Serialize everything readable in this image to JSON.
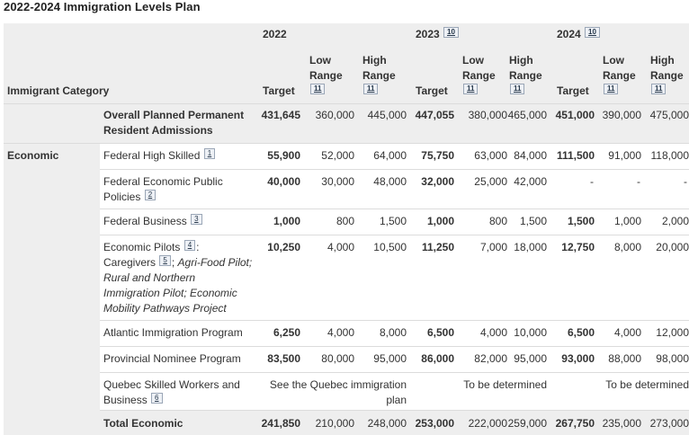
{
  "caption": "2022-2024 Immigration Levels Plan",
  "header": {
    "category": "Immigrant Category",
    "years": [
      {
        "year": "2022",
        "note": ""
      },
      {
        "year": "2023",
        "note": "10"
      },
      {
        "year": "2024",
        "note": "10"
      }
    ],
    "target": "Target",
    "low_line1": "Low",
    "low_line2": "Range",
    "low_note": "11",
    "high_line1": "High",
    "high_line2": "Range",
    "high_note": "11"
  },
  "overall": {
    "label_line1": "Overall Planned Permanent",
    "label_line2": "Resident Admissions",
    "values": [
      "431,645",
      "360,000",
      "445,000",
      "447,055",
      "380,000",
      "465,000",
      "451,000",
      "390,000",
      "475,000"
    ]
  },
  "economic": {
    "category": "Economic",
    "rows": [
      {
        "label": "Federal High Skilled",
        "note": "1",
        "values": [
          "55,900",
          "52,000",
          "64,000",
          "75,750",
          "63,000",
          "84,000",
          "111,500",
          "91,000",
          "118,000"
        ]
      },
      {
        "label_line1": "Federal Economic Public",
        "label_line2": "Policies",
        "note": "2",
        "values": [
          "40,000",
          "30,000",
          "48,000",
          "32,000",
          "25,000",
          "42,000",
          "-",
          "-",
          "-"
        ]
      },
      {
        "label": "Federal Business",
        "note": "3",
        "values": [
          "1,000",
          "800",
          "1,500",
          "1,000",
          "800",
          "1,500",
          "1,500",
          "1,000",
          "2,000"
        ]
      },
      {
        "label_a": "Economic Pilots",
        "note_a": "4",
        "sep_a": ":",
        "label_b": "Caregivers",
        "note_b": "5",
        "sep_b": ";",
        "italic_1": "Agri-Food Pilot;",
        "italic_2": "Rural and Northern",
        "italic_3": "Immigration Pilot; Economic",
        "italic_4": "Mobility Pathways Project",
        "values": [
          "10,250",
          "4,000",
          "10,500",
          "11,250",
          "7,000",
          "18,000",
          "12,750",
          "8,000",
          "20,000"
        ]
      },
      {
        "label": "Atlantic Immigration Program",
        "values": [
          "6,250",
          "4,000",
          "8,000",
          "6,500",
          "4,000",
          "10,000",
          "6,500",
          "4,000",
          "12,000"
        ]
      },
      {
        "label": "Provincial Nominee Program",
        "values": [
          "83,500",
          "80,000",
          "95,000",
          "86,000",
          "82,000",
          "95,000",
          "93,000",
          "88,000",
          "98,000"
        ]
      },
      {
        "label_line1": "Quebec Skilled Workers and",
        "label_line2": "Business",
        "note": "6",
        "text_2022_line1": "See the Quebec immigration",
        "text_2022_line2": "plan",
        "text_2023": "To be determined",
        "text_2024": "To be determined"
      }
    ],
    "total": {
      "label": "Total Economic",
      "values": [
        "241,850",
        "210,000",
        "248,000",
        "253,000",
        "222,000",
        "259,000",
        "267,750",
        "235,000",
        "273,000"
      ]
    }
  },
  "colors": {
    "shade": "#eeeeee",
    "rule": "#dcdcdc",
    "footnote_border": "#9aa6b6",
    "footnote_link": "#26374a"
  }
}
